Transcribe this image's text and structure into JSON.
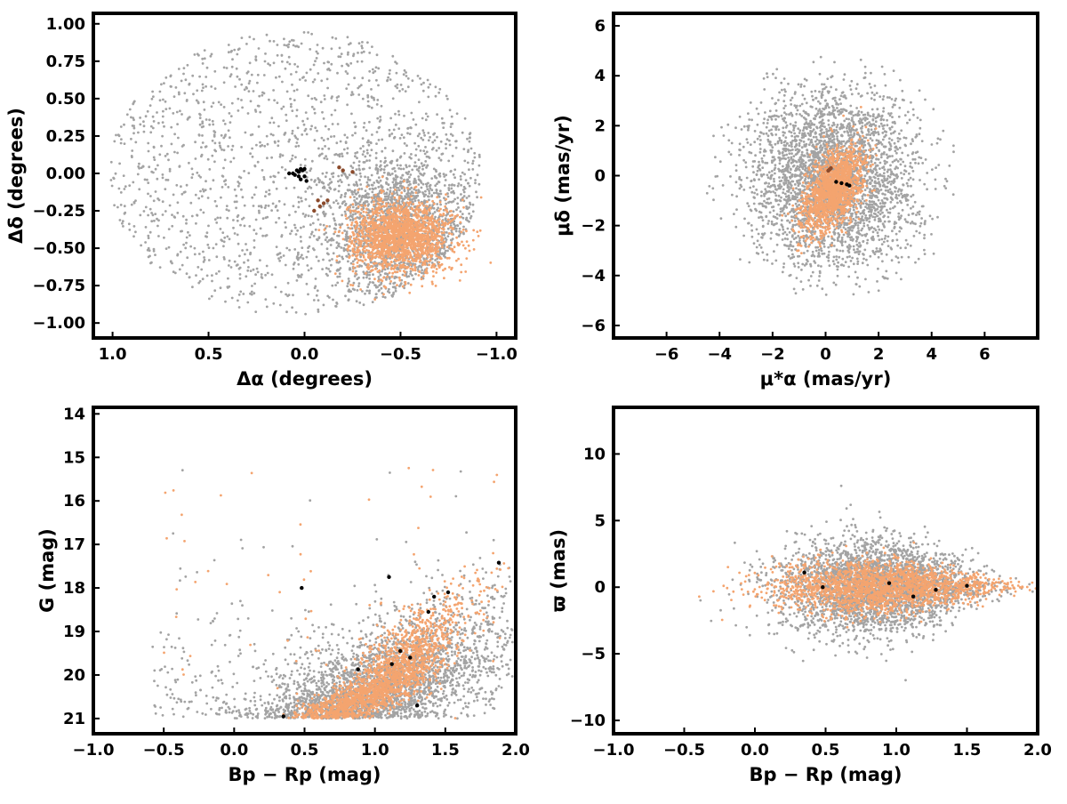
{
  "colors": {
    "field_stars": "#a3a3a3",
    "members": "#f4a46f",
    "highlight_brown": "#8b4a2b",
    "highlight_black": "#000000"
  },
  "chart_data": [
    {
      "type": "scatter",
      "id": "sky",
      "xlabel": "Δα (degrees)",
      "ylabel": "Δδ (degrees)",
      "xlim": [
        1.1,
        -1.1
      ],
      "ylim": [
        -1.1,
        1.07
      ],
      "x_inverted": true,
      "xticks": [
        "1.0",
        "0.5",
        "0.0",
        "−0.5",
        "−1.0"
      ],
      "xtick_values": [
        1.0,
        0.5,
        0.0,
        -0.5,
        -1.0
      ],
      "yticks": [
        "1.00",
        "0.75",
        "0.50",
        "0.25",
        "0.00",
        "−0.25",
        "−0.50",
        "−0.75",
        "−1.00"
      ],
      "ytick_values": [
        1.0,
        0.75,
        0.5,
        0.25,
        0.0,
        -0.25,
        -0.5,
        -0.75,
        -1.0
      ],
      "grid": false,
      "series": [
        {
          "role": "field",
          "color": "#a3a3a3",
          "distribution": "disk plus concentration",
          "disk_center": [
            0.05,
            0.0
          ],
          "disk_radius": 0.97,
          "concentration_center": [
            -0.5,
            -0.35
          ],
          "concentration_spread": [
            0.2,
            0.25
          ],
          "count": 3200
        },
        {
          "role": "members",
          "color": "#f4a46f",
          "distribution": "gaussian",
          "center": [
            -0.5,
            -0.42
          ],
          "spread": [
            0.13,
            0.12
          ],
          "count": 1700
        },
        {
          "role": "highlight",
          "color": "#000000",
          "points": [
            [
              0.03,
              0.01
            ],
            [
              0.0,
              0.03
            ],
            [
              0.05,
              -0.01
            ],
            [
              0.02,
              -0.04
            ],
            [
              0.06,
              0.0
            ],
            [
              0.01,
              0.02
            ],
            [
              -0.01,
              -0.05
            ],
            [
              0.04,
              0.02
            ],
            [
              0.08,
              0.0
            ],
            [
              0.0,
              -0.02
            ],
            [
              0.03,
              -0.02
            ],
            [
              0.02,
              0.03
            ]
          ]
        },
        {
          "role": "highlight",
          "color": "#8b4a2b",
          "points": [
            [
              -0.07,
              -0.18
            ],
            [
              -0.08,
              -0.22
            ],
            [
              -0.1,
              -0.2
            ],
            [
              -0.05,
              -0.25
            ],
            [
              -0.2,
              0.02
            ],
            [
              -0.18,
              0.04
            ],
            [
              -0.25,
              0.01
            ],
            [
              -0.12,
              -0.18
            ]
          ]
        }
      ]
    },
    {
      "type": "scatter",
      "id": "proper-motion",
      "xlabel": "μ*α (mas/yr)",
      "ylabel": "μδ (mas/yr)",
      "xlim": [
        -8,
        8
      ],
      "ylim": [
        -6.5,
        6.5
      ],
      "x_inverted": false,
      "xticks": [
        "−6",
        "−4",
        "−2",
        "0",
        "2",
        "4",
        "6"
      ],
      "xtick_values": [
        -6,
        -4,
        -2,
        0,
        2,
        4,
        6
      ],
      "yticks": [
        "6",
        "4",
        "2",
        "0",
        "−2",
        "−4",
        "−6"
      ],
      "ytick_values": [
        6,
        4,
        2,
        0,
        -2,
        -4,
        -6
      ],
      "grid": false,
      "series": [
        {
          "role": "field",
          "color": "#a3a3a3",
          "distribution": "gaussian disk",
          "center": [
            0.3,
            -0.1
          ],
          "spread": [
            1.6,
            1.8
          ],
          "max_radius": 4.9,
          "count": 3200
        },
        {
          "role": "members",
          "color": "#f4a46f",
          "distribution": "tilted gaussian",
          "center": [
            0.3,
            -0.6
          ],
          "spread": [
            0.45,
            0.9
          ],
          "tilt": -0.45,
          "count": 1500
        },
        {
          "role": "highlight",
          "color": "#000000",
          "points": [
            [
              0.6,
              -0.3
            ],
            [
              0.8,
              -0.35
            ],
            [
              0.4,
              -0.25
            ],
            [
              0.9,
              -0.4
            ]
          ]
        },
        {
          "role": "highlight",
          "color": "#8b4a2b",
          "points": [
            [
              0.1,
              0.2
            ],
            [
              0.2,
              0.3
            ],
            [
              0.15,
              0.25
            ]
          ]
        }
      ]
    },
    {
      "type": "scatter",
      "id": "cmd",
      "xlabel": "Bp − Rp (mag)",
      "ylabel": "G (mag)",
      "xlim": [
        -1.0,
        2.0
      ],
      "ylim": [
        21.35,
        13.85
      ],
      "y_inverted": true,
      "xticks": [
        "−1.0",
        "−0.5",
        "0.0",
        "0.5",
        "1.0",
        "1.5",
        "2.0"
      ],
      "xtick_values": [
        -1.0,
        -0.5,
        0.0,
        0.5,
        1.0,
        1.5,
        2.0
      ],
      "yticks": [
        "21",
        "20",
        "19",
        "18",
        "17",
        "16",
        "15",
        "14"
      ],
      "ytick_values": [
        21,
        20,
        19,
        18,
        17,
        16,
        15,
        14
      ],
      "grid": false,
      "series": [
        {
          "role": "field",
          "color": "#a3a3a3",
          "distribution": "sequence band",
          "sequence": [
            [
              21.0,
              0.7
            ],
            [
              20.5,
              0.95
            ],
            [
              20.0,
              1.15
            ],
            [
              19.5,
              1.3
            ],
            [
              19.0,
              1.45
            ],
            [
              18.5,
              1.55
            ],
            [
              18.0,
              1.7
            ],
            [
              17.5,
              1.9
            ]
          ],
          "spread": 0.35,
          "count": 3000
        },
        {
          "role": "members",
          "color": "#f4a46f",
          "distribution": "sequence band",
          "sequence": [
            [
              21.0,
              0.65
            ],
            [
              20.5,
              0.95
            ],
            [
              20.0,
              1.15
            ],
            [
              19.5,
              1.25
            ],
            [
              19.0,
              1.35
            ],
            [
              18.5,
              1.45
            ],
            [
              18.0,
              1.65
            ],
            [
              17.5,
              1.95
            ]
          ],
          "spread": 0.15,
          "count": 1900
        },
        {
          "role": "highlight",
          "color": "#000000",
          "points": [
            [
              0.35,
              20.95
            ],
            [
              0.88,
              19.87
            ],
            [
              1.12,
              19.75
            ],
            [
              1.18,
              19.45
            ],
            [
              1.25,
              19.6
            ],
            [
              1.3,
              20.7
            ],
            [
              1.38,
              18.55
            ],
            [
              1.42,
              18.2
            ],
            [
              1.52,
              18.1
            ],
            [
              1.88,
              17.42
            ],
            [
              0.48,
              18.0
            ],
            [
              1.1,
              17.75
            ]
          ]
        }
      ]
    },
    {
      "type": "scatter",
      "id": "parallax",
      "xlabel": "Bp − Rp (mag)",
      "ylabel": "ϖ (mas)",
      "xlim": [
        -1.0,
        2.0
      ],
      "ylim": [
        -11,
        13.5
      ],
      "x_inverted": false,
      "xticks": [
        "−1.0",
        "−0.5",
        "0.0",
        "0.5",
        "1.0",
        "1.5",
        "2.0"
      ],
      "xtick_values": [
        -1.0,
        -0.5,
        0.0,
        0.5,
        1.0,
        1.5,
        2.0
      ],
      "yticks": [
        "10",
        "5",
        "0",
        "−5",
        "−10"
      ],
      "ytick_values": [
        10,
        5,
        0,
        -5,
        -10
      ],
      "grid": false,
      "series": [
        {
          "role": "field",
          "color": "#a3a3a3",
          "distribution": "cone",
          "center_x": 0.85,
          "x_spread": 0.35,
          "y_spread_at_center": 1.8,
          "count": 3000
        },
        {
          "role": "members",
          "color": "#f4a46f",
          "distribution": "cone",
          "center_x": 0.9,
          "x_spread": 0.4,
          "y_spread_at_center": 1.0,
          "count": 1900
        },
        {
          "role": "highlight",
          "color": "#000000",
          "points": [
            [
              0.35,
              1.1
            ],
            [
              1.12,
              -0.7
            ],
            [
              1.28,
              -0.2
            ],
            [
              0.95,
              0.3
            ],
            [
              0.48,
              0.0
            ],
            [
              1.5,
              0.1
            ]
          ]
        }
      ]
    }
  ]
}
